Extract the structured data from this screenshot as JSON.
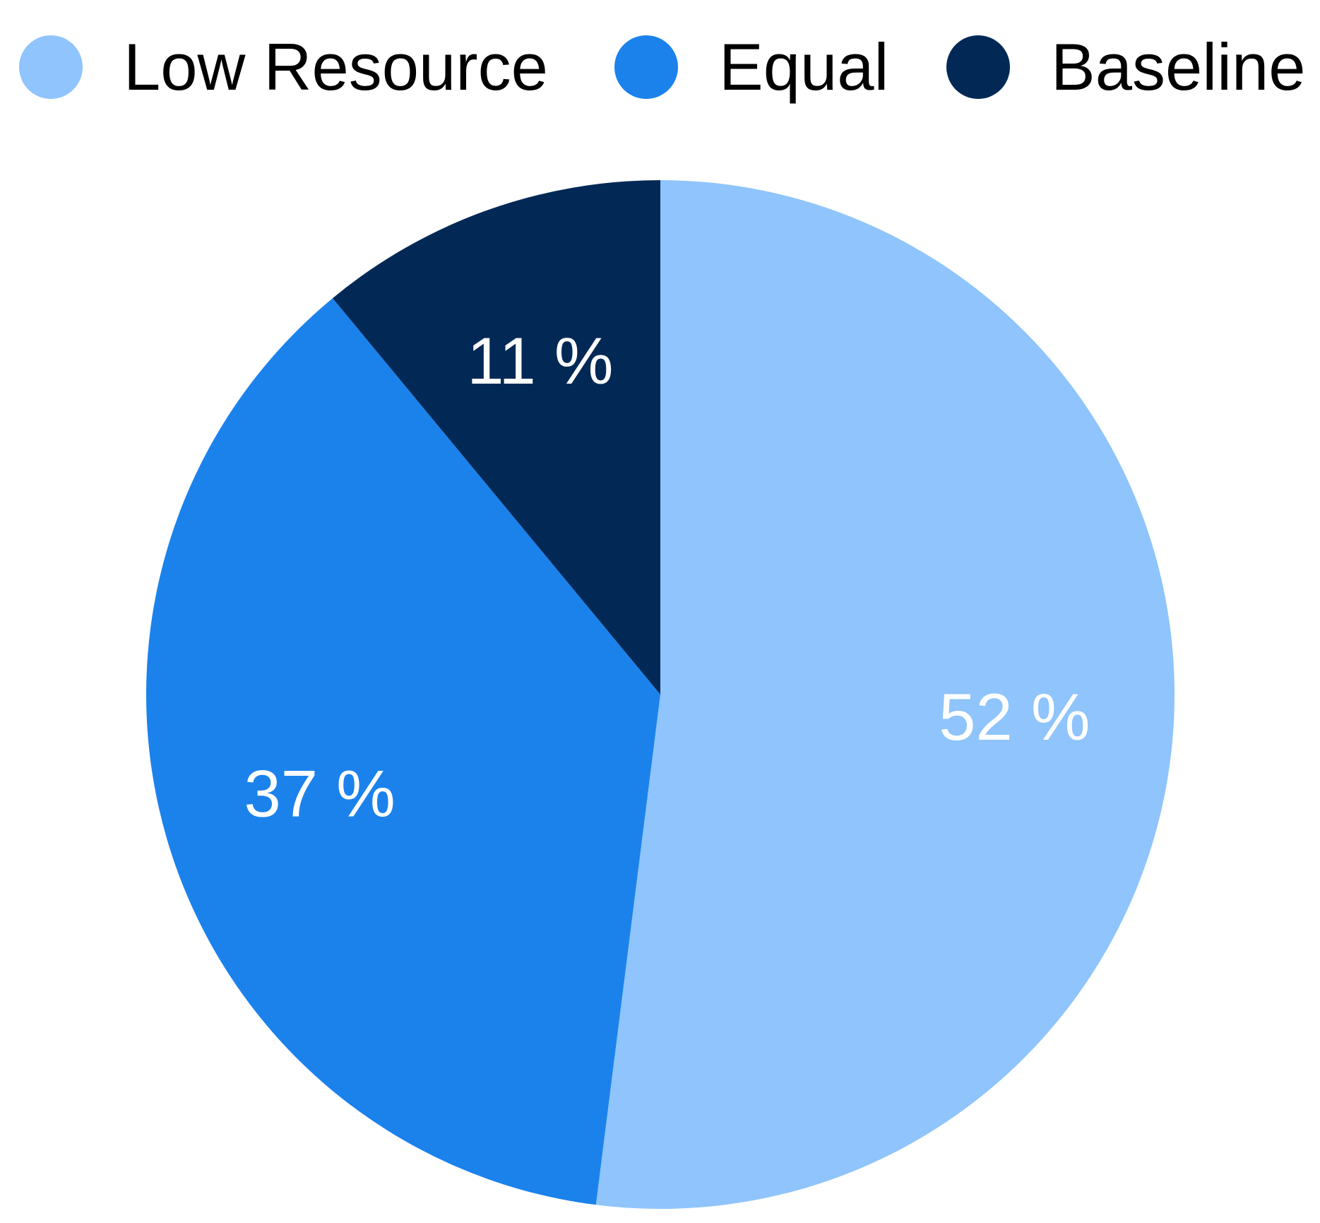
{
  "chart_data": {
    "type": "pie",
    "categories": [
      "Low Resource",
      "Equal",
      "Baseline"
    ],
    "values": [
      52,
      37,
      11
    ],
    "data_labels": [
      "52 %",
      "37 %",
      "11 %"
    ],
    "colors": [
      "#8fc4fc",
      "#1b82ec",
      "#022956"
    ],
    "title": "",
    "legend": "top",
    "start_angle": "12 o'clock, clockwise"
  }
}
